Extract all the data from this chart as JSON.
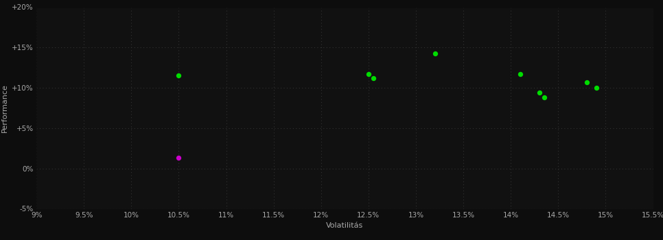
{
  "background_color": "#0d0d0d",
  "plot_bg_color": "#111111",
  "grid_color": "#333333",
  "text_color": "#aaaaaa",
  "xlabel": "Volatilitás",
  "ylabel": "Performance",
  "xlim": [
    0.09,
    0.155
  ],
  "ylim": [
    -0.05,
    0.2
  ],
  "xticks": [
    0.09,
    0.095,
    0.1,
    0.105,
    0.11,
    0.115,
    0.12,
    0.125,
    0.13,
    0.135,
    0.14,
    0.145,
    0.15,
    0.155
  ],
  "yticks": [
    -0.05,
    0.0,
    0.05,
    0.1,
    0.15,
    0.2
  ],
  "green_points": [
    [
      0.105,
      0.115
    ],
    [
      0.125,
      0.117
    ],
    [
      0.1255,
      0.112
    ],
    [
      0.132,
      0.143
    ],
    [
      0.141,
      0.117
    ],
    [
      0.143,
      0.094
    ],
    [
      0.1435,
      0.088
    ],
    [
      0.148,
      0.107
    ],
    [
      0.149,
      0.1
    ]
  ],
  "magenta_points": [
    [
      0.105,
      0.013
    ]
  ],
  "green_color": "#00dd00",
  "magenta_color": "#cc00cc",
  "marker_size": 28,
  "tick_fontsize": 7.5,
  "label_fontsize": 8
}
